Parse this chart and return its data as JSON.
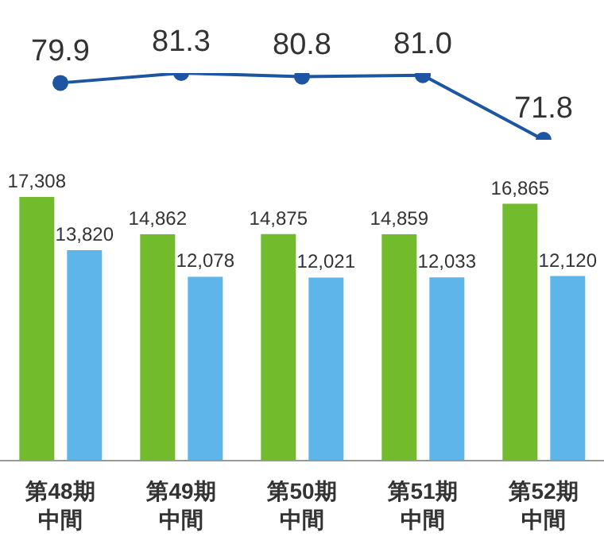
{
  "chart_data": [
    {
      "type": "line",
      "categories": [
        null,
        null,
        null,
        null,
        null
      ],
      "series": [
        {
          "color": "#1e55a3",
          "values": [
            79.9,
            81.3,
            80.8,
            81.0,
            71.8
          ],
          "value_labels": [
            "79.9",
            "81.3",
            "80.8",
            "81.0",
            "71.8"
          ]
        }
      ],
      "marker": "circle",
      "line_style": "solid"
    },
    {
      "type": "bar",
      "categories": [
        "第48期中間",
        "第49期中間",
        "第50期中間",
        "第51期中間",
        "第52期中間"
      ],
      "series": [
        {
          "color": "#72bb2c",
          "values": [
            17308,
            14862,
            14875,
            14859,
            16865
          ],
          "value_labels": [
            "17,308",
            "14,862",
            "14,875",
            "14,859",
            "16,865"
          ]
        },
        {
          "color": "#5db5e9",
          "values": [
            13820,
            12078,
            12021,
            12033,
            12120
          ],
          "value_labels": [
            "13,820",
            "12,078",
            "12,021",
            "12,033",
            "12,120"
          ]
        }
      ],
      "tick_labels": "x"
    }
  ]
}
